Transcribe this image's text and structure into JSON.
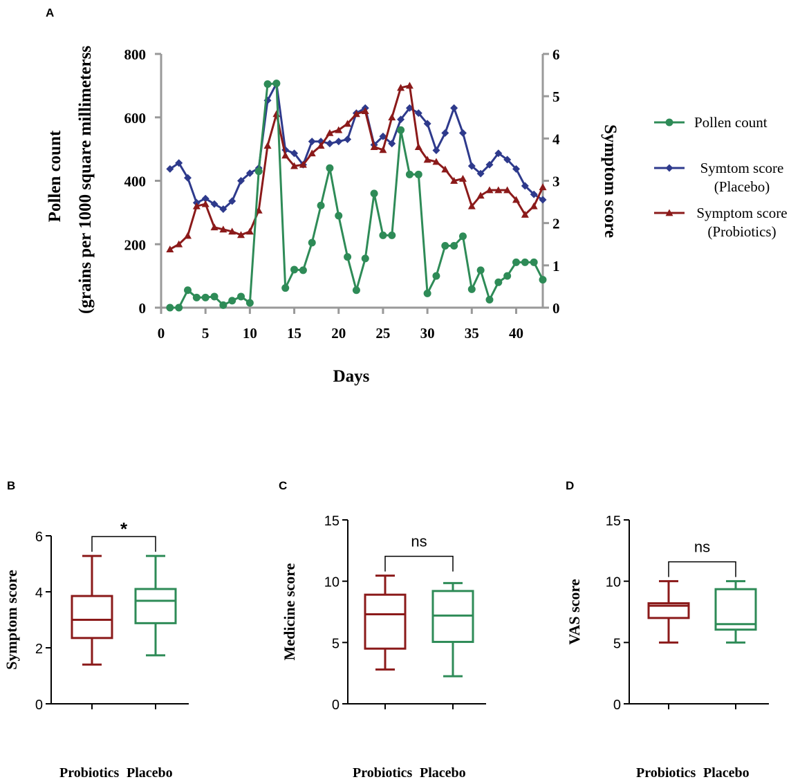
{
  "colors": {
    "pollen": "#2e8b57",
    "placebo": "#2e3a8c",
    "probiotics": "#8b1a1a",
    "axis": "#999999"
  },
  "chart_data": [
    {
      "panel_label": "A",
      "type": "line",
      "xlabel": "Days",
      "ylabel_left_line1": "Pollen count",
      "ylabel_left_line2": "(grains per 1000 square millimeterss",
      "ylabel_right": "Symptom score",
      "xlim": [
        0,
        43
      ],
      "xticks": [
        0,
        5,
        10,
        15,
        20,
        25,
        30,
        35,
        40
      ],
      "ylim_left": [
        0,
        800
      ],
      "yticks_left": [
        0,
        200,
        400,
        600,
        800
      ],
      "ylim_right": [
        0,
        6
      ],
      "yticks_right": [
        0,
        1,
        2,
        3,
        4,
        5,
        6
      ],
      "x": [
        1,
        2,
        3,
        4,
        5,
        6,
        7,
        8,
        9,
        10,
        11,
        12,
        13,
        14,
        15,
        16,
        17,
        18,
        19,
        20,
        21,
        22,
        23,
        24,
        25,
        26,
        27,
        28,
        29,
        30,
        31,
        32,
        33,
        34,
        35,
        36,
        37,
        38,
        39,
        40,
        41,
        42,
        43
      ],
      "series": [
        {
          "name": "Pollen count",
          "axis": "left",
          "marker": "circle",
          "values": [
            0,
            0,
            55,
            32,
            32,
            35,
            8,
            22,
            35,
            15,
            430,
            705,
            707,
            62,
            120,
            118,
            205,
            322,
            440,
            290,
            160,
            55,
            155,
            360,
            228,
            228,
            560,
            420,
            420,
            45,
            100,
            195,
            195,
            225,
            58,
            118,
            25,
            80,
            100,
            143,
            143,
            143,
            88
          ]
        },
        {
          "name": "Symtom score (Placebo)",
          "legend_line1": "Symtom score",
          "legend_line2": "(Placebo)",
          "axis": "right",
          "marker": "diamond",
          "values": [
            3.28,
            3.42,
            3.07,
            2.48,
            2.58,
            2.45,
            2.33,
            2.52,
            3.0,
            3.18,
            3.3,
            4.9,
            5.3,
            3.73,
            3.65,
            3.38,
            3.93,
            3.93,
            3.88,
            3.93,
            3.98,
            4.6,
            4.72,
            3.85,
            4.05,
            3.88,
            4.45,
            4.72,
            4.6,
            4.35,
            3.72,
            4.13,
            4.72,
            4.13,
            3.35,
            3.17,
            3.38,
            3.65,
            3.5,
            3.28,
            2.88,
            2.68,
            2.55
          ]
        },
        {
          "name": "Symptom score (Probiotics)",
          "legend_line1": "Symptom score",
          "legend_line2": "(Probiotics)",
          "axis": "right",
          "marker": "triangle",
          "values": [
            1.38,
            1.5,
            1.7,
            2.4,
            2.45,
            1.9,
            1.85,
            1.8,
            1.72,
            1.8,
            2.3,
            3.83,
            4.58,
            3.6,
            3.35,
            3.38,
            3.65,
            3.83,
            4.13,
            4.2,
            4.35,
            4.58,
            4.65,
            3.8,
            3.73,
            4.5,
            5.2,
            5.25,
            3.8,
            3.5,
            3.45,
            3.27,
            3.0,
            3.05,
            2.4,
            2.65,
            2.78,
            2.78,
            2.78,
            2.55,
            2.2,
            2.4,
            2.85
          ]
        }
      ]
    },
    {
      "panel_label": "B",
      "type": "box",
      "ylabel": "Symptom score",
      "ylim": [
        0,
        6
      ],
      "yticks": [
        0,
        2,
        4,
        6
      ],
      "categories": [
        "Probiotics",
        "Placebo"
      ],
      "significance": "*",
      "boxes": [
        {
          "name": "Probiotics",
          "min": 1.4,
          "q1": 2.35,
          "median": 3.0,
          "q3": 3.85,
          "max": 5.28
        },
        {
          "name": "Placebo",
          "min": 1.73,
          "q1": 2.88,
          "median": 3.68,
          "q3": 4.1,
          "max": 5.28
        }
      ]
    },
    {
      "panel_label": "C",
      "type": "box",
      "ylabel": "Medicine score",
      "ylim": [
        0,
        15
      ],
      "yticks": [
        0,
        5,
        10,
        15
      ],
      "categories": [
        "Probiotics",
        "Placebo"
      ],
      "significance": "ns",
      "boxes": [
        {
          "name": "Probiotics",
          "min": 2.8,
          "q1": 4.5,
          "median": 7.3,
          "q3": 8.9,
          "max": 10.45
        },
        {
          "name": "Placebo",
          "min": 2.25,
          "q1": 5.05,
          "median": 7.2,
          "q3": 9.2,
          "max": 9.85
        }
      ]
    },
    {
      "panel_label": "D",
      "type": "box",
      "ylabel": "VAS score",
      "ylim": [
        0,
        15
      ],
      "yticks": [
        0,
        5,
        10,
        15
      ],
      "categories": [
        "Probiotics",
        "Placebo"
      ],
      "significance": "ns",
      "boxes": [
        {
          "name": "Probiotics",
          "min": 5.0,
          "q1": 7.0,
          "median": 8.0,
          "q3": 8.2,
          "max": 10.0
        },
        {
          "name": "Placebo",
          "min": 5.0,
          "q1": 6.05,
          "median": 6.5,
          "q3": 9.35,
          "max": 10.0
        }
      ]
    }
  ]
}
